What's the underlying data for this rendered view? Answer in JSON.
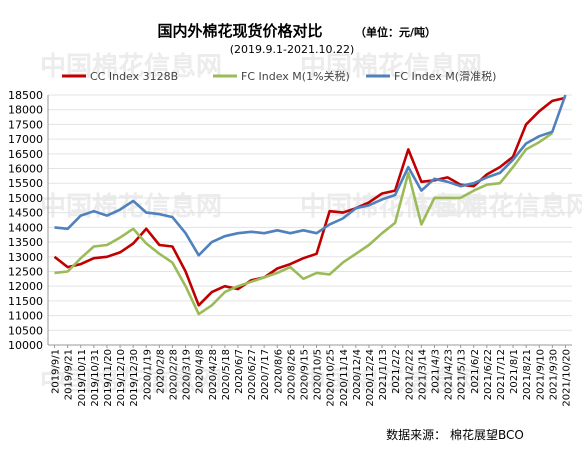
{
  "chart_data": {
    "type": "line",
    "title": "国内外棉花现货价格对比",
    "unit_note": "（单位：元/吨）",
    "subtitle": "(2019.9.1-2021.10.22)",
    "source": "数据来源：  棉花展望BCO",
    "watermark": "中国棉花信息网",
    "ylim": [
      10000,
      18500
    ],
    "y_ticks": [
      10000,
      10500,
      11000,
      11500,
      12000,
      12500,
      13000,
      13500,
      14000,
      14500,
      15000,
      15500,
      16000,
      16500,
      17000,
      17500,
      18000,
      18500
    ],
    "x_ticks": [
      "2019/9/1",
      "2019/9/21",
      "2019/10/11",
      "2019/10/31",
      "2019/11/20",
      "2019/12/10",
      "2019/12/30",
      "2020/1/19",
      "2020/2/8",
      "2020/2/28",
      "2020/3/19",
      "2020/4/8",
      "2020/4/28",
      "2020/5/18",
      "2020/6/7",
      "2020/6/27",
      "2020/7/17",
      "2020/8/6",
      "2020/8/26",
      "2020/9/15",
      "2020/10/5",
      "2020/10/25",
      "2020/11/14",
      "2020/12/4",
      "2020/12/24",
      "2021/1/13",
      "2021/2/2",
      "2021/2/22",
      "2021/3/14",
      "2021/4/3",
      "2021/4/23",
      "2021/5/13",
      "2021/6/2",
      "2021/6/22",
      "2021/7/12",
      "2021/8/1",
      "2021/8/21",
      "2021/9/10",
      "2021/9/30",
      "2021/10/20"
    ],
    "series": [
      {
        "name": "CC Index 3128B",
        "color": "#c00000",
        "x": [
          "2019/9/1",
          "2019/9/21",
          "2019/10/11",
          "2019/10/31",
          "2019/11/20",
          "2019/12/10",
          "2019/12/30",
          "2020/1/19",
          "2020/2/8",
          "2020/2/28",
          "2020/3/19",
          "2020/4/8",
          "2020/4/28",
          "2020/5/18",
          "2020/6/7",
          "2020/6/27",
          "2020/7/17",
          "2020/8/6",
          "2020/8/26",
          "2020/9/15",
          "2020/10/5",
          "2020/10/25",
          "2020/11/14",
          "2020/12/4",
          "2020/12/24",
          "2021/1/13",
          "2021/2/2",
          "2021/2/22",
          "2021/3/14",
          "2021/4/3",
          "2021/4/23",
          "2021/5/13",
          "2021/6/2",
          "2021/6/22",
          "2021/7/12",
          "2021/8/1",
          "2021/8/21",
          "2021/9/10",
          "2021/9/30",
          "2021/10/20"
        ],
        "values": [
          13000,
          12650,
          12750,
          12950,
          13000,
          13150,
          13450,
          13950,
          13400,
          13350,
          12500,
          11350,
          11800,
          12000,
          11900,
          12200,
          12300,
          12600,
          12750,
          12950,
          13100,
          14550,
          14500,
          14650,
          14850,
          15150,
          15250,
          16650,
          15550,
          15600,
          15700,
          15450,
          15400,
          15800,
          16050,
          16400,
          17500,
          17950,
          18300,
          18400
        ]
      },
      {
        "name": "FC Index M(1%关税)",
        "color": "#9bbb59",
        "x": [
          "2019/9/1",
          "2019/9/21",
          "2019/10/11",
          "2019/10/31",
          "2019/11/20",
          "2019/12/10",
          "2019/12/30",
          "2020/1/19",
          "2020/2/8",
          "2020/2/28",
          "2020/3/19",
          "2020/4/8",
          "2020/4/28",
          "2020/5/18",
          "2020/6/7",
          "2020/6/27",
          "2020/7/17",
          "2020/8/6",
          "2020/8/26",
          "2020/9/15",
          "2020/10/5",
          "2020/10/25",
          "2020/11/14",
          "2020/12/4",
          "2020/12/24",
          "2021/1/13",
          "2021/2/2",
          "2021/2/22",
          "2021/3/14",
          "2021/4/3",
          "2021/4/23",
          "2021/5/13",
          "2021/6/2",
          "2021/6/22",
          "2021/7/12",
          "2021/8/1",
          "2021/8/21",
          "2021/9/10",
          "2021/9/30"
        ],
        "values": [
          12450,
          12500,
          12950,
          13350,
          13400,
          13650,
          13950,
          13450,
          13100,
          12800,
          12000,
          11050,
          11350,
          11800,
          12000,
          12150,
          12300,
          12450,
          12650,
          12250,
          12450,
          12400,
          12800,
          13100,
          13400,
          13800,
          14150,
          15850,
          14100,
          15000,
          15000,
          15000,
          15250,
          15450,
          15500,
          16050,
          16650,
          16900,
          17200
        ]
      },
      {
        "name": "FC Index M(滑准税)",
        "color": "#4f81bd",
        "x": [
          "2019/9/1",
          "2019/9/21",
          "2019/10/11",
          "2019/10/31",
          "2019/11/20",
          "2019/12/10",
          "2019/12/30",
          "2020/1/19",
          "2020/2/8",
          "2020/2/28",
          "2020/3/19",
          "2020/4/8",
          "2020/4/28",
          "2020/5/18",
          "2020/6/7",
          "2020/6/27",
          "2020/7/17",
          "2020/8/6",
          "2020/8/26",
          "2020/9/15",
          "2020/10/5",
          "2020/10/25",
          "2020/11/14",
          "2020/12/4",
          "2020/12/24",
          "2021/1/13",
          "2021/2/2",
          "2021/2/22",
          "2021/3/14",
          "2021/4/3",
          "2021/4/23",
          "2021/5/13",
          "2021/6/2",
          "2021/6/22",
          "2021/7/12",
          "2021/8/1",
          "2021/8/21",
          "2021/9/10",
          "2021/9/30",
          "2021/10/20"
        ],
        "values": [
          14000,
          13950,
          14400,
          14550,
          14400,
          14600,
          14900,
          14500,
          14450,
          14350,
          13800,
          13050,
          13500,
          13700,
          13800,
          13850,
          13800,
          13900,
          13800,
          13900,
          13800,
          14100,
          14300,
          14650,
          14750,
          14950,
          15100,
          16050,
          15250,
          15650,
          15550,
          15400,
          15500,
          15700,
          15850,
          16300,
          16850,
          17100,
          17250,
          18500
        ]
      }
    ]
  }
}
